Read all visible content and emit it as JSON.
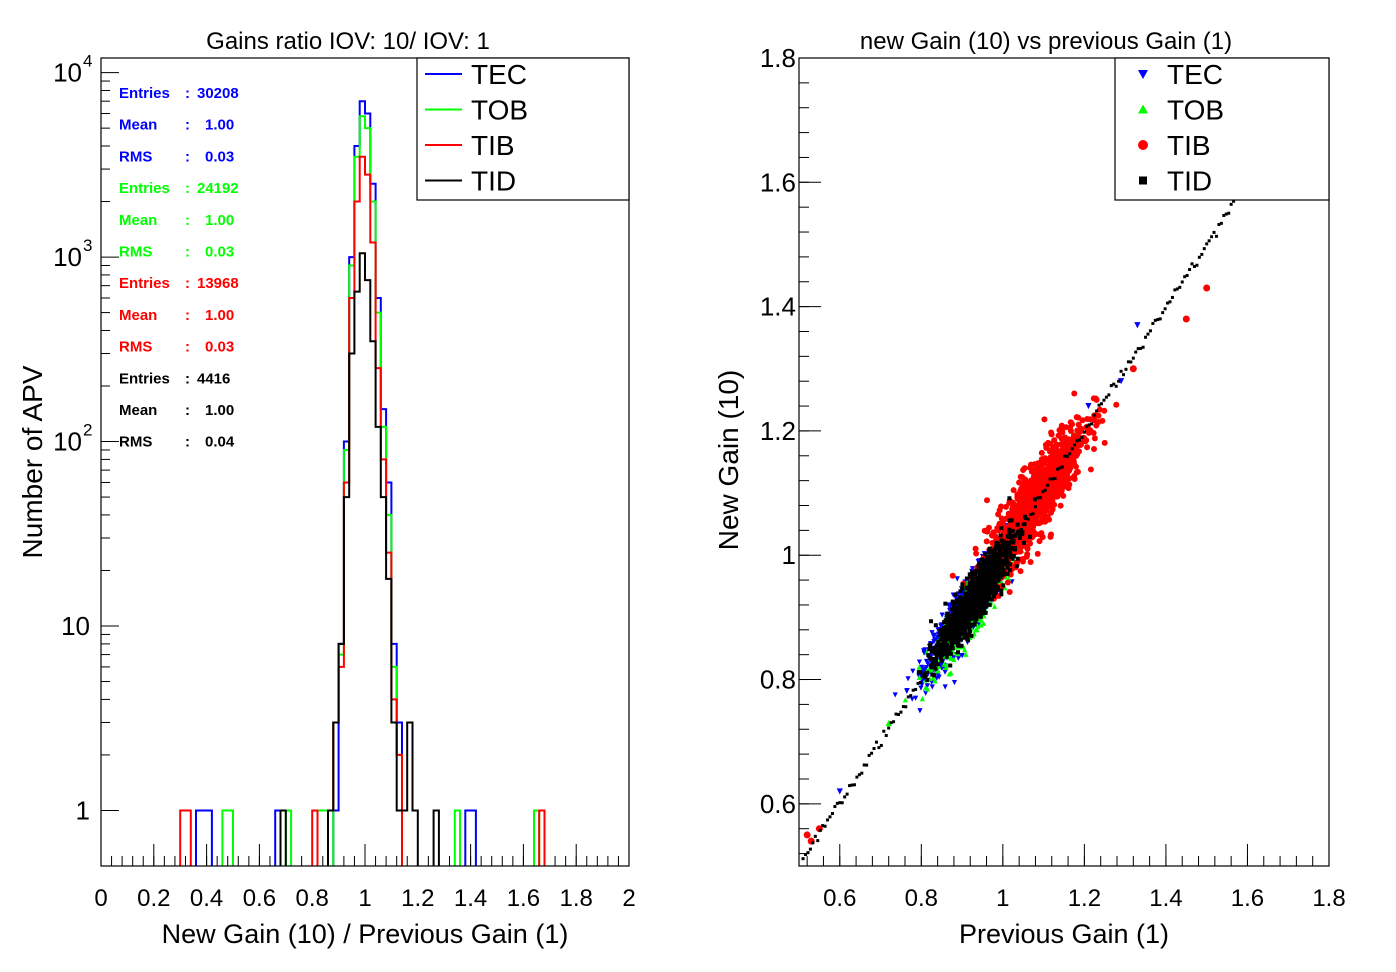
{
  "colors": {
    "TEC": "#0000ff",
    "TOB": "#00ff00",
    "TIB": "#ff0000",
    "TID": "#000000",
    "frame": "#000000",
    "background": "#ffffff"
  },
  "chart_data": [
    {
      "type": "histogram",
      "title": "Gains ratio IOV: 10/ IOV: 1",
      "xlabel": "New Gain (10) / Previous Gain (1)",
      "ylabel": "Number of APV",
      "xlim": [
        0,
        2
      ],
      "ylim": [
        0.5,
        12000
      ],
      "yscale": "log",
      "bin_width": 0.02,
      "x_ticks": [
        "0",
        "0.2",
        "0.4",
        "0.6",
        "0.8",
        "1",
        "1.2",
        "1.4",
        "1.6",
        "1.8",
        "2"
      ],
      "y_ticks": [
        {
          "value": 1,
          "base": "1",
          "exp": ""
        },
        {
          "value": 10,
          "base": "10",
          "exp": ""
        },
        {
          "value": 100,
          "base": "10",
          "exp": "2"
        },
        {
          "value": 1000,
          "base": "10",
          "exp": "3"
        },
        {
          "value": 10000,
          "base": "10",
          "exp": "4"
        }
      ],
      "legend": {
        "position": "top-right",
        "entries": [
          "TEC",
          "TOB",
          "TIB",
          "TID"
        ]
      },
      "series": [
        {
          "name": "TEC",
          "stats": [
            "Entries : 30208",
            "Mean    :   1.00",
            "RMS     :   0.03"
          ],
          "bins": [
            [
              0.36,
              1
            ],
            [
              0.38,
              1
            ],
            [
              0.4,
              1
            ],
            [
              0.66,
              1
            ],
            [
              0.88,
              1
            ],
            [
              0.9,
              8
            ],
            [
              0.92,
              100
            ],
            [
              0.94,
              1000
            ],
            [
              0.96,
              4000
            ],
            [
              0.98,
              7000
            ],
            [
              1.0,
              6000
            ],
            [
              1.02,
              2500
            ],
            [
              1.04,
              600
            ],
            [
              1.06,
              150
            ],
            [
              1.08,
              60
            ],
            [
              1.1,
              8
            ],
            [
              1.12,
              3
            ],
            [
              1.38,
              1
            ],
            [
              1.4,
              1
            ]
          ]
        },
        {
          "name": "TOB",
          "stats": [
            "Entries : 24192",
            "Mean    :   1.00",
            "RMS     :   0.03"
          ],
          "bins": [
            [
              0.46,
              1
            ],
            [
              0.48,
              1
            ],
            [
              0.7,
              1
            ],
            [
              0.82,
              1
            ],
            [
              0.84,
              1
            ],
            [
              0.88,
              3
            ],
            [
              0.9,
              7
            ],
            [
              0.92,
              90
            ],
            [
              0.94,
              900
            ],
            [
              0.96,
              3500
            ],
            [
              0.98,
              5800
            ],
            [
              1.0,
              5000
            ],
            [
              1.02,
              2000
            ],
            [
              1.04,
              500
            ],
            [
              1.06,
              120
            ],
            [
              1.08,
              40
            ],
            [
              1.1,
              6
            ],
            [
              1.12,
              2
            ],
            [
              1.34,
              1
            ],
            [
              1.64,
              1
            ]
          ]
        },
        {
          "name": "TIB",
          "stats": [
            "Entries : 13968",
            "Mean    :   1.00",
            "RMS     :   0.03"
          ],
          "bins": [
            [
              0.3,
              1
            ],
            [
              0.32,
              1
            ],
            [
              0.8,
              1
            ],
            [
              0.86,
              1
            ],
            [
              0.88,
              3
            ],
            [
              0.9,
              6
            ],
            [
              0.92,
              60
            ],
            [
              0.94,
              600
            ],
            [
              0.96,
              2000
            ],
            [
              0.98,
              3500
            ],
            [
              1.0,
              2800
            ],
            [
              1.02,
              1200
            ],
            [
              1.04,
              250
            ],
            [
              1.06,
              80
            ],
            [
              1.08,
              25
            ],
            [
              1.1,
              4
            ],
            [
              1.12,
              2
            ],
            [
              1.66,
              1
            ]
          ]
        },
        {
          "name": "TID",
          "stats": [
            "Entries : 4416",
            "Mean    :   1.00",
            "RMS     :   0.04"
          ],
          "bins": [
            [
              0.68,
              1
            ],
            [
              0.86,
              1
            ],
            [
              0.88,
              3
            ],
            [
              0.9,
              8
            ],
            [
              0.92,
              50
            ],
            [
              0.94,
              300
            ],
            [
              0.96,
              650
            ],
            [
              0.98,
              1050
            ],
            [
              1.0,
              750
            ],
            [
              1.02,
              350
            ],
            [
              1.04,
              120
            ],
            [
              1.06,
              50
            ],
            [
              1.08,
              18
            ],
            [
              1.1,
              3
            ],
            [
              1.12,
              1
            ],
            [
              1.14,
              1
            ],
            [
              1.16,
              3
            ],
            [
              1.18,
              1
            ],
            [
              1.26,
              1
            ]
          ]
        }
      ]
    },
    {
      "type": "scatter",
      "title": "new Gain (10) vs previous Gain (1)",
      "xlabel": "Previous Gain (1)",
      "ylabel": "New Gain (10)",
      "xlim": [
        0.5,
        1.8
      ],
      "ylim": [
        0.5,
        1.8
      ],
      "x_ticks": [
        "0.6",
        "0.8",
        "1",
        "1.2",
        "1.4",
        "1.6",
        "1.8"
      ],
      "y_ticks": [
        "0.6",
        "0.8",
        "1",
        "1.2",
        "1.4",
        "1.6",
        "1.8"
      ],
      "legend": {
        "position": "top-right",
        "entries": [
          "TEC",
          "TOB",
          "TIB",
          "TID"
        ]
      },
      "series": [
        {
          "name": "TEC",
          "marker": "triangle-down",
          "center": [
            0.91,
            0.91
          ],
          "spread": [
            0.05,
            0.04
          ],
          "outliers": [
            [
              1.33,
              1.37
            ],
            [
              1.29,
              1.28
            ],
            [
              1.21,
              1.24
            ],
            [
              0.6,
              0.62
            ]
          ]
        },
        {
          "name": "TOB",
          "marker": "triangle-up",
          "center": [
            0.93,
            0.92
          ],
          "spread": [
            0.045,
            0.035
          ],
          "outliers": [
            [
              1.17,
              1.2
            ],
            [
              0.72,
              0.73
            ]
          ]
        },
        {
          "name": "TIB",
          "marker": "circle",
          "center": [
            1.08,
            1.09
          ],
          "spread": [
            0.06,
            0.055
          ],
          "outliers": [
            [
              1.5,
              1.43
            ],
            [
              1.45,
              1.38
            ],
            [
              1.32,
              1.3
            ],
            [
              0.55,
              0.56
            ],
            [
              0.53,
              0.54
            ],
            [
              0.52,
              0.55
            ]
          ]
        },
        {
          "name": "TID",
          "marker": "square",
          "center": [
            0.93,
            0.93
          ],
          "spread": [
            0.045,
            0.035
          ],
          "line": [
            0.51,
            1.58
          ]
        }
      ]
    }
  ]
}
